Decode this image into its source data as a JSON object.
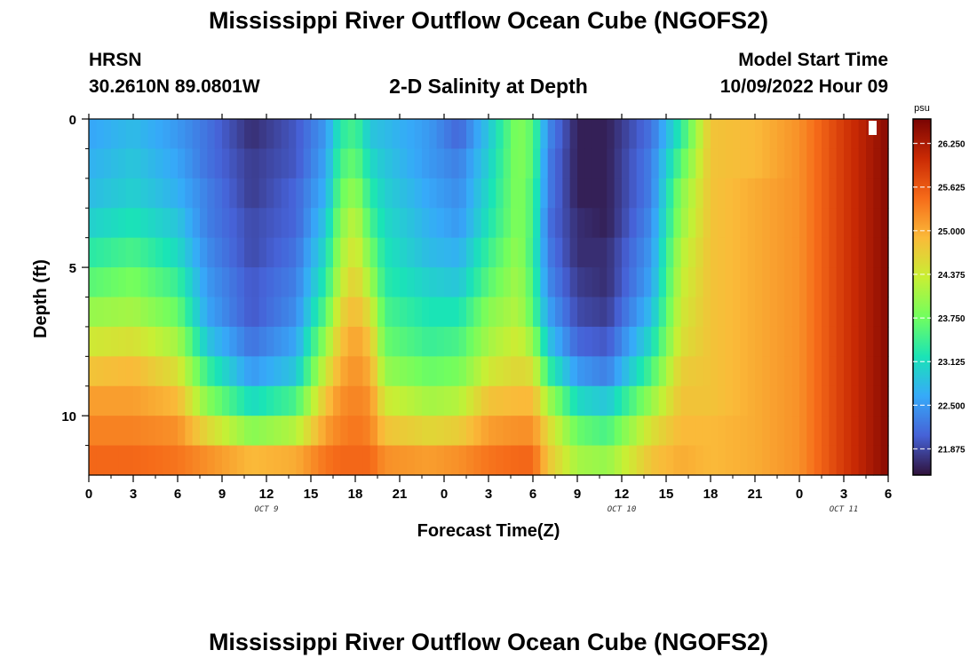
{
  "title": "Mississippi River Outflow Ocean Cube (NGOFS2)",
  "station": {
    "name": "HRSN",
    "coords": "30.2610N  89.0801W"
  },
  "subtitle": "2-D Salinity at Depth",
  "model_start": {
    "label": "Model Start Time",
    "value": "10/09/2022 Hour 09"
  },
  "footer_title": "Mississippi River Outflow Ocean Cube (NGOFS2)",
  "chart_data": {
    "type": "heatmap",
    "title": "2-D Salinity at Depth",
    "xlabel": "Forecast Time(Z)",
    "ylabel": "Depth (ft)",
    "x_ticks": [
      "0",
      "3",
      "6",
      "9",
      "12",
      "15",
      "18",
      "21",
      "0",
      "3",
      "6",
      "9",
      "12",
      "15",
      "18",
      "21",
      "0",
      "3",
      "6"
    ],
    "date_labels": [
      {
        "text": "OCT 9",
        "hour_index": 12
      },
      {
        "text": "OCT 10",
        "hour_index": 36
      },
      {
        "text": "OCT 11",
        "hour_index": 51
      }
    ],
    "y_ticks": [
      "0",
      "5",
      "10"
    ],
    "y_range_ft": [
      0,
      12
    ],
    "x_range_hours": [
      0,
      54
    ],
    "colorbar": {
      "unit": "psu",
      "min": 21.5,
      "max": 26.6,
      "ticks": [
        "26.250",
        "25.625",
        "25.000",
        "24.375",
        "23.750",
        "23.125",
        "22.500",
        "21.875"
      ],
      "colors": [
        "#30123b",
        "#4662d7",
        "#36aaf9",
        "#1ae4b6",
        "#72fe5e",
        "#c8ef34",
        "#faba39",
        "#f66b19",
        "#ca2a04",
        "#7a0403"
      ]
    },
    "depth_levels_ft": [
      0.5,
      1.5,
      2.5,
      3.5,
      4.5,
      5.5,
      6.5,
      7.5,
      8.5,
      9.5,
      10.5,
      11.5
    ],
    "salinity_profiles": [
      {
        "hour": 0,
        "values": [
          22.6,
          22.7,
          22.8,
          23.0,
          23.3,
          23.6,
          24.0,
          24.4,
          24.8,
          25.1,
          25.3,
          25.5
        ]
      },
      {
        "hour": 3,
        "values": [
          22.8,
          22.9,
          23.0,
          23.2,
          23.5,
          23.8,
          24.1,
          24.5,
          24.9,
          25.1,
          25.3,
          25.5
        ]
      },
      {
        "hour": 6,
        "values": [
          22.5,
          22.6,
          22.7,
          22.9,
          23.1,
          23.4,
          23.7,
          24.1,
          24.5,
          24.9,
          25.2,
          25.4
        ]
      },
      {
        "hour": 8,
        "values": [
          22.2,
          22.2,
          22.3,
          22.3,
          22.4,
          22.5,
          22.6,
          22.9,
          23.4,
          23.9,
          24.6,
          25.2
        ]
      },
      {
        "hour": 11,
        "values": [
          21.7,
          21.8,
          21.8,
          21.9,
          21.9,
          22.0,
          22.0,
          22.2,
          22.5,
          23.1,
          23.9,
          24.9
        ]
      },
      {
        "hour": 14,
        "values": [
          22.0,
          22.0,
          22.1,
          22.1,
          22.2,
          22.3,
          22.4,
          22.6,
          22.9,
          23.5,
          24.2,
          25.0
        ]
      },
      {
        "hour": 16,
        "values": [
          22.5,
          22.6,
          22.7,
          22.9,
          23.1,
          23.3,
          23.6,
          24.0,
          24.4,
          24.8,
          25.1,
          25.4
        ]
      },
      {
        "hour": 17,
        "values": [
          23.3,
          23.5,
          23.7,
          23.9,
          24.1,
          24.3,
          24.6,
          24.8,
          25.0,
          25.2,
          25.3,
          25.5
        ]
      },
      {
        "hour": 18,
        "values": [
          23.5,
          23.7,
          24.0,
          24.3,
          24.5,
          24.7,
          24.9,
          25.1,
          25.2,
          25.3,
          25.4,
          25.5
        ]
      },
      {
        "hour": 19,
        "values": [
          22.9,
          23.1,
          23.3,
          23.5,
          23.8,
          24.1,
          24.5,
          24.8,
          25.0,
          25.2,
          25.3,
          25.5
        ]
      },
      {
        "hour": 20,
        "values": [
          22.8,
          22.9,
          23.0,
          23.1,
          23.2,
          23.3,
          23.5,
          23.7,
          24.0,
          24.4,
          24.8,
          25.2
        ]
      },
      {
        "hour": 23,
        "values": [
          22.5,
          22.5,
          22.6,
          22.7,
          22.8,
          23.0,
          23.2,
          23.4,
          23.7,
          24.1,
          24.6,
          25.1
        ]
      },
      {
        "hour": 25,
        "values": [
          22.1,
          22.3,
          22.4,
          22.5,
          22.7,
          22.9,
          23.2,
          23.5,
          23.8,
          24.2,
          24.7,
          25.2
        ]
      },
      {
        "hour": 27,
        "values": [
          22.9,
          23.0,
          23.1,
          23.2,
          23.4,
          23.6,
          23.9,
          24.1,
          24.4,
          24.8,
          25.1,
          25.4
        ]
      },
      {
        "hour": 29,
        "values": [
          23.9,
          23.9,
          23.9,
          23.9,
          24.0,
          24.1,
          24.2,
          24.4,
          24.6,
          24.9,
          25.2,
          25.5
        ]
      },
      {
        "hour": 30,
        "values": [
          23.6,
          23.6,
          23.5,
          23.5,
          23.4,
          23.5,
          23.6,
          24.0,
          24.5,
          24.9,
          25.2,
          25.5
        ]
      },
      {
        "hour": 31,
        "values": [
          22.4,
          22.3,
          22.3,
          22.2,
          22.3,
          22.4,
          22.6,
          22.9,
          23.4,
          24.1,
          24.6,
          24.8
        ]
      },
      {
        "hour": 33,
        "values": [
          21.6,
          21.6,
          21.6,
          21.7,
          21.7,
          21.8,
          21.9,
          22.1,
          22.5,
          23.1,
          23.7,
          24.1
        ]
      },
      {
        "hour": 35,
        "values": [
          21.6,
          21.6,
          21.6,
          21.6,
          21.7,
          21.7,
          21.8,
          22.0,
          22.3,
          22.9,
          23.5,
          24.0
        ]
      },
      {
        "hour": 38,
        "values": [
          22.2,
          22.3,
          22.3,
          22.4,
          22.5,
          22.6,
          22.8,
          23.1,
          23.5,
          24.0,
          24.5,
          24.8
        ]
      },
      {
        "hour": 40,
        "values": [
          23.3,
          23.6,
          23.9,
          24.0,
          24.2,
          24.3,
          24.4,
          24.5,
          24.7,
          24.8,
          24.9,
          25.0
        ]
      },
      {
        "hour": 42,
        "values": [
          24.8,
          24.8,
          24.8,
          24.8,
          24.8,
          24.8,
          24.8,
          24.8,
          24.8,
          24.8,
          24.9,
          24.9
        ]
      },
      {
        "hour": 45,
        "values": [
          24.9,
          24.9,
          25.0,
          25.0,
          25.0,
          25.0,
          25.0,
          25.0,
          25.0,
          25.0,
          25.0,
          25.0
        ]
      },
      {
        "hour": 48,
        "values": [
          25.2,
          25.2,
          25.2,
          25.2,
          25.2,
          25.2,
          25.2,
          25.2,
          25.2,
          25.2,
          25.2,
          25.2
        ]
      },
      {
        "hour": 51,
        "values": [
          25.9,
          25.9,
          25.9,
          25.9,
          25.9,
          25.9,
          25.9,
          25.9,
          25.9,
          25.9,
          25.9,
          25.9
        ]
      },
      {
        "hour": 54,
        "values": [
          26.5,
          26.5,
          26.5,
          26.5,
          26.5,
          26.5,
          26.5,
          26.5,
          26.5,
          26.5,
          26.5,
          26.5
        ]
      }
    ]
  }
}
